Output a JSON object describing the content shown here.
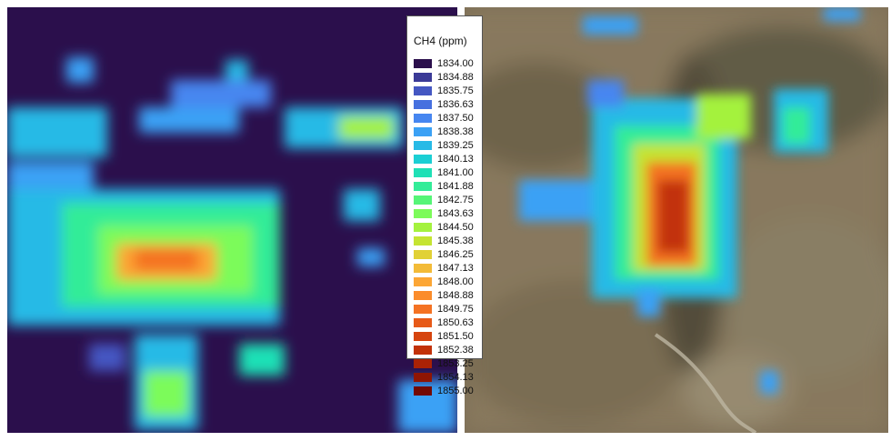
{
  "legend": {
    "title": "CH4 (ppm)",
    "items": [
      {
        "label": "1834.00",
        "color": "#2b0f4c"
      },
      {
        "label": "1834.88",
        "color": "#3b3a97"
      },
      {
        "label": "1835.75",
        "color": "#4457c2"
      },
      {
        "label": "1836.63",
        "color": "#4670df"
      },
      {
        "label": "1837.50",
        "color": "#4686f0"
      },
      {
        "label": "1838.38",
        "color": "#3ba1f5"
      },
      {
        "label": "1839.25",
        "color": "#27bae6"
      },
      {
        "label": "1840.13",
        "color": "#1bcfd4"
      },
      {
        "label": "1841.00",
        "color": "#1fe0b6"
      },
      {
        "label": "1841.88",
        "color": "#33ec98"
      },
      {
        "label": "1842.75",
        "color": "#56f577"
      },
      {
        "label": "1843.63",
        "color": "#7cfb5a"
      },
      {
        "label": "1844.50",
        "color": "#a4f23e"
      },
      {
        "label": "1845.38",
        "color": "#c5e432"
      },
      {
        "label": "1846.25",
        "color": "#e1d136"
      },
      {
        "label": "1847.13",
        "color": "#f3bb38"
      },
      {
        "label": "1848.00",
        "color": "#fca635"
      },
      {
        "label": "1848.88",
        "color": "#fb8c2b"
      },
      {
        "label": "1849.75",
        "color": "#f47223"
      },
      {
        "label": "1850.63",
        "color": "#e75a18"
      },
      {
        "label": "1851.50",
        "color": "#d6440e"
      },
      {
        "label": "1852.38",
        "color": "#c23209"
      },
      {
        "label": "1853.25",
        "color": "#aa2205"
      },
      {
        "label": "1854.13",
        "color": "#8f1503"
      },
      {
        "label": "1855.00",
        "color": "#730a02"
      }
    ]
  }
}
